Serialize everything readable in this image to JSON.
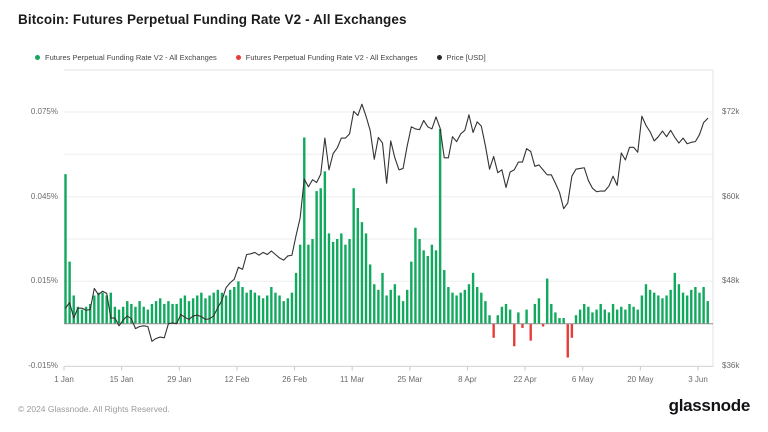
{
  "title": "Bitcoin: Futures Perpetual Funding Rate V2 - All Exchanges",
  "legend": [
    {
      "label": "Futures Perpetual Funding Rate V2 - All Exchanges",
      "color": "#10a95d"
    },
    {
      "label": "Futures Perpetual Funding Rate V2 - All Exchanges",
      "color": "#e73c37"
    },
    {
      "label": "Price [USD]",
      "color": "#2b2b2b"
    }
  ],
  "footer": {
    "copyright": "© 2024 Glassnode. All Rights Reserved.",
    "brand": "glassnode"
  },
  "chart_data": {
    "type": "mixed",
    "title": "Bitcoin: Futures Perpetual Funding Rate V2 - All Exchanges",
    "x_start_date": "2024-01-01",
    "x_interval": "daily",
    "x_tick_labels": [
      "1 Jan",
      "15 Jan",
      "29 Jan",
      "12 Feb",
      "26 Feb",
      "11 Mar",
      "25 Mar",
      "8 Apr",
      "22 Apr",
      "6 May",
      "20 May",
      "3 Jun"
    ],
    "x_tick_day_step": 14,
    "grid": "horizontal-only",
    "legend_position": "top-left",
    "y_left": {
      "tick_labels": [
        "0.075%",
        "0.045%",
        "0.015%",
        "-0.015%"
      ],
      "unit": "%",
      "range_pct": [
        -0.0163,
        0.09
      ]
    },
    "y_right": {
      "tick_labels": [
        "$72k",
        "$60k",
        "$48k",
        "$36k"
      ],
      "unit": "USD",
      "range_usd_k": [
        34.1,
        77.9
      ]
    },
    "series": [
      {
        "name": "Futures Perpetual Funding Rate V2 - All Exchanges",
        "type": "bar",
        "unit": "percent",
        "color_positive": "#10a95d",
        "color_negative": "#e73c37",
        "values": [
          0.053,
          0.022,
          0.01,
          0.006,
          0.005,
          0.006,
          0.007,
          0.01,
          0.011,
          0.011,
          0.01,
          0.011,
          0.006,
          0.005,
          0.006,
          0.008,
          0.007,
          0.006,
          0.008,
          0.006,
          0.005,
          0.007,
          0.008,
          0.009,
          0.007,
          0.008,
          0.007,
          0.007,
          0.009,
          0.01,
          0.008,
          0.009,
          0.01,
          0.011,
          0.009,
          0.01,
          0.011,
          0.012,
          0.011,
          0.01,
          0.012,
          0.013,
          0.015,
          0.013,
          0.011,
          0.012,
          0.011,
          0.01,
          0.009,
          0.01,
          0.013,
          0.011,
          0.01,
          0.008,
          0.009,
          0.011,
          0.018,
          0.028,
          0.066,
          0.028,
          0.03,
          0.047,
          0.048,
          0.054,
          0.032,
          0.029,
          0.03,
          0.032,
          0.028,
          0.03,
          0.048,
          0.041,
          0.036,
          0.032,
          0.021,
          0.014,
          0.012,
          0.018,
          0.01,
          0.012,
          0.014,
          0.01,
          0.008,
          0.012,
          0.022,
          0.034,
          0.03,
          0.026,
          0.024,
          0.028,
          0.026,
          0.069,
          0.019,
          0.013,
          0.011,
          0.01,
          0.011,
          0.012,
          0.014,
          0.018,
          0.013,
          0.011,
          0.008,
          0.003,
          -0.005,
          0.003,
          0.006,
          0.007,
          0.005,
          -0.008,
          0.004,
          -0.0015,
          0.005,
          -0.006,
          0.007,
          0.009,
          -0.001,
          0.016,
          0.007,
          0.004,
          0.002,
          0.002,
          -0.012,
          -0.005,
          0.003,
          0.005,
          0.007,
          0.006,
          0.004,
          0.005,
          0.007,
          0.005,
          0.004,
          0.007,
          0.005,
          0.006,
          0.005,
          0.007,
          0.006,
          0.005,
          0.01,
          0.014,
          0.012,
          0.011,
          0.01,
          0.009,
          0.01,
          0.012,
          0.018,
          0.014,
          0.011,
          0.01,
          0.012,
          0.013,
          0.011,
          0.013,
          0.008
        ]
      },
      {
        "name": "Price [USD]",
        "type": "line",
        "unit": "USD thousands",
        "color": "#333333",
        "values": [
          44.2,
          45.0,
          42.8,
          44.2,
          44.2,
          43.9,
          44.0,
          47.0,
          46.1,
          46.6,
          46.3,
          42.8,
          42.8,
          41.7,
          42.5,
          43.1,
          42.7,
          41.3,
          41.6,
          41.7,
          41.6,
          39.5,
          39.9,
          40.1,
          40.0,
          42.0,
          42.1,
          42.0,
          43.3,
          42.9,
          42.6,
          43.1,
          43.2,
          43.0,
          42.6,
          42.7,
          43.1,
          44.3,
          45.3,
          47.1,
          47.8,
          48.3,
          50.0,
          49.7,
          51.8,
          51.9,
          52.1,
          51.7,
          52.1,
          51.8,
          52.3,
          51.8,
          51.3,
          51.0,
          51.6,
          51.7,
          54.5,
          57.0,
          62.5,
          61.4,
          62.4,
          62.0,
          63.2,
          68.3,
          63.8,
          66.1,
          66.9,
          68.3,
          68.3,
          68.9,
          72.1,
          71.5,
          73.1,
          71.4,
          69.4,
          65.3,
          68.4,
          67.6,
          61.9,
          67.9,
          65.5,
          63.8,
          64.0,
          67.2,
          69.9,
          69.6,
          69.5,
          70.8,
          69.9,
          69.6,
          71.3,
          69.7,
          65.5,
          65.5,
          68.5,
          67.8,
          68.9,
          69.4,
          71.6,
          69.1,
          70.6,
          70.0,
          67.2,
          63.9,
          65.7,
          63.4,
          63.8,
          61.3,
          63.5,
          63.8,
          64.9,
          64.9,
          66.8,
          66.4,
          64.3,
          64.5,
          63.8,
          63.1,
          63.1,
          61.9,
          60.6,
          58.3,
          59.1,
          62.9,
          63.9,
          64.0,
          64.1,
          62.3,
          61.2,
          60.7,
          60.8,
          60.8,
          61.5,
          62.9,
          61.6,
          66.2,
          65.2,
          67.0,
          67.0,
          66.3,
          71.4,
          70.1,
          69.2,
          67.9,
          68.5,
          69.3,
          68.5,
          69.4,
          68.4,
          67.6,
          68.3,
          67.5,
          67.7,
          67.8,
          68.8,
          70.5,
          71.1
        ]
      }
    ]
  }
}
